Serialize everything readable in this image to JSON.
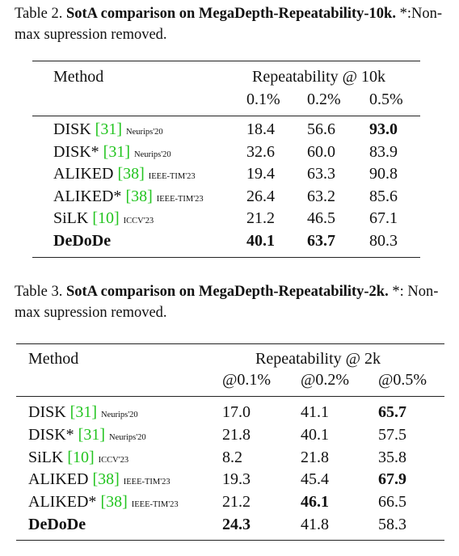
{
  "tables": [
    {
      "caption": {
        "label": "Table 2.",
        "title": "SotA comparison on MegaDepth-Repeatability-10k.",
        "note": "*:Non-max supression removed."
      },
      "header": {
        "method": "Method",
        "group": "Repeatability @ 10k",
        "columns": [
          "0.1%",
          "0.2%",
          "0.5%"
        ]
      },
      "rows": [
        {
          "name": "DISK",
          "ref": "[31]",
          "venue": "Neurips'20",
          "values": [
            "18.4",
            "56.6",
            "93.0"
          ],
          "bold": [
            false,
            false,
            true
          ],
          "name_bold": false
        },
        {
          "name": "DISK*",
          "ref": "[31]",
          "venue": "Neurips'20",
          "values": [
            "32.6",
            "60.0",
            "83.9"
          ],
          "bold": [
            false,
            false,
            false
          ],
          "name_bold": false
        },
        {
          "name": "ALIKED",
          "ref": "[38]",
          "venue": "IEEE-TIM'23",
          "values": [
            "19.4",
            "63.3",
            "90.8"
          ],
          "bold": [
            false,
            false,
            false
          ],
          "name_bold": false
        },
        {
          "name": "ALIKED*",
          "ref": "[38]",
          "venue": "IEEE-TIM'23",
          "values": [
            "26.4",
            "63.2",
            "85.6"
          ],
          "bold": [
            false,
            false,
            false
          ],
          "name_bold": false
        },
        {
          "name": "SiLK",
          "ref": "[10]",
          "venue": "ICCV'23",
          "values": [
            "21.2",
            "46.5",
            "67.1"
          ],
          "bold": [
            false,
            false,
            false
          ],
          "name_bold": false
        },
        {
          "name": "DeDoDe",
          "values": [
            "40.1",
            "63.7",
            "80.3"
          ],
          "bold": [
            true,
            true,
            false
          ],
          "name_bold": true
        }
      ]
    },
    {
      "caption": {
        "label": "Table 3.",
        "title": "SotA comparison on MegaDepth-Repeatability-2k.",
        "note": "*: Non-max supression removed."
      },
      "header": {
        "method": "Method",
        "group": "Repeatability @ 2k",
        "columns": [
          "@0.1%",
          "@0.2%",
          "@0.5%"
        ]
      },
      "rows": [
        {
          "name": "DISK",
          "ref": "[31]",
          "venue": "Neurips'20",
          "values": [
            "17.0",
            "41.1",
            "65.7"
          ],
          "bold": [
            false,
            false,
            true
          ],
          "name_bold": false
        },
        {
          "name": "DISK*",
          "ref": "[31]",
          "venue": "Neurips'20",
          "values": [
            "21.8",
            "40.1",
            "57.5"
          ],
          "bold": [
            false,
            false,
            false
          ],
          "name_bold": false
        },
        {
          "name": "SiLK",
          "ref": "[10]",
          "venue": "ICCV'23",
          "values": [
            "8.2",
            "21.8",
            "35.8"
          ],
          "bold": [
            false,
            false,
            false
          ],
          "name_bold": false
        },
        {
          "name": "ALIKED",
          "ref": "[38]",
          "venue": "IEEE-TIM'23",
          "values": [
            "19.3",
            "45.4",
            "67.9"
          ],
          "bold": [
            false,
            false,
            true
          ],
          "name_bold": false
        },
        {
          "name": "ALIKED*",
          "ref": "[38]",
          "venue": "IEEE-TIM'23",
          "values": [
            "21.2",
            "46.1",
            "66.5"
          ],
          "bold": [
            false,
            true,
            false
          ],
          "name_bold": false
        },
        {
          "name": "DeDoDe",
          "values": [
            "24.3",
            "41.8",
            "58.3"
          ],
          "bold": [
            true,
            false,
            false
          ],
          "name_bold": true
        }
      ]
    }
  ]
}
